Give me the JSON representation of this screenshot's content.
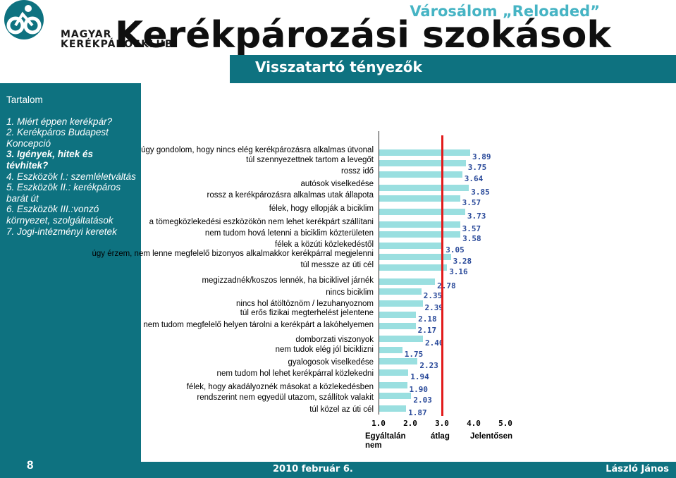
{
  "header": {
    "logo_text_line1": "MAGYAR",
    "logo_text_line2": "KERÉKPÁROSKLUB",
    "title": "Kerékpározási szokások",
    "project": "Városálom „Reloaded”",
    "subtitle": "Visszatartó tényezők"
  },
  "sidebar": {
    "heading": "Tartalom",
    "items": [
      {
        "label": "1. Miért éppen kerékpár?",
        "bold": false,
        "italic": true
      },
      {
        "label": "2. Kerékpáros Budapest Koncepció",
        "bold": false,
        "italic": true
      },
      {
        "label": "3. Igények, hitek és tévhitek?",
        "bold": true,
        "italic": true
      },
      {
        "label": "4. Eszközök I.: szemléletváltás",
        "bold": false,
        "italic": true
      },
      {
        "label": "5. Eszközök II.: kerékpáros barát út",
        "bold": false,
        "italic": true
      },
      {
        "label": "6. Eszközök III.:vonzó környezet, szolgáltatások",
        "bold": false,
        "italic": true
      },
      {
        "label": "7. Jogi-intézményi keretek",
        "bold": false,
        "italic": true
      }
    ],
    "page_number": "8"
  },
  "footer": {
    "date": "2010 február 6.",
    "author": "László János"
  },
  "chart_data": {
    "type": "bar",
    "orientation": "horizontal",
    "categories": [
      "úgy gondolom, hogy nincs elég kerékpározásra alkalmas útvonal",
      "túl szennyezettnek tartom a levegőt",
      "rossz idő",
      "autósok viselkedése",
      "rossz a kerékpározásra alkalmas utak állapota",
      "félek, hogy ellopják a biciklim",
      "a tömegközlekedési eszközökön nem lehet kerékpárt szállítani",
      "nem tudom hová letenni a biciklim közterületen",
      "félek a közúti közlekedéstől",
      "úgy érzem, nem lenne megfelelő bizonyos alkalmakkor kerékpárral megjelenni",
      "túl messze az úti cél",
      "megizzadnék/koszos lennék, ha biciklivel járnék",
      "nincs biciklim",
      "nincs hol átöltöznöm / lezuhanyoznom",
      "túl erős fizikai megterhelést jelentene",
      "nem tudom megfelelő helyen tárolni a kerékpárt a lakóhelyemen",
      "domborzati viszonyok",
      "nem tudok elég jól biciklizni",
      "gyalogosok viselkedése",
      "nem tudom hol lehet kerékpárral közlekedni",
      "félek, hogy akadályoznék másokat a közlekedésben",
      "rendszerint nem egyedül utazom, szállítok valakit",
      "túl közel az úti cél"
    ],
    "values": [
      3.89,
      3.75,
      3.64,
      3.85,
      3.57,
      3.73,
      3.57,
      3.58,
      3.05,
      3.28,
      3.16,
      2.78,
      2.35,
      2.39,
      2.18,
      2.17,
      2.4,
      1.75,
      2.23,
      1.94,
      1.9,
      2.03,
      1.87
    ],
    "value_labels": [
      "3.89",
      "3.75",
      "3.64",
      "3.85",
      "3.57",
      "3.73",
      "3.57",
      "3.58",
      "3.05",
      "3.28",
      "3.16",
      "2.78",
      "2.35",
      "2.39",
      "2.18",
      "2.17",
      "2.40",
      "1.75",
      "2.23",
      "1.94",
      "1.90",
      "2.03",
      "1.87"
    ],
    "xlim": [
      1.0,
      5.0
    ],
    "x_ticks": [
      "1.0",
      "2.0",
      "3.0",
      "4.0",
      "5.0"
    ],
    "average_line": 3.0,
    "average_line_color": "#e21b1b",
    "bar_color": "#9adfe0",
    "value_label_color": "#2a4a9a",
    "scale_labels": {
      "low": "Egyáltalán nem",
      "mid": "átlag",
      "high": "Jelentősen"
    }
  },
  "colors": {
    "accent": "#0e7280",
    "project_title": "#46b4c4"
  }
}
